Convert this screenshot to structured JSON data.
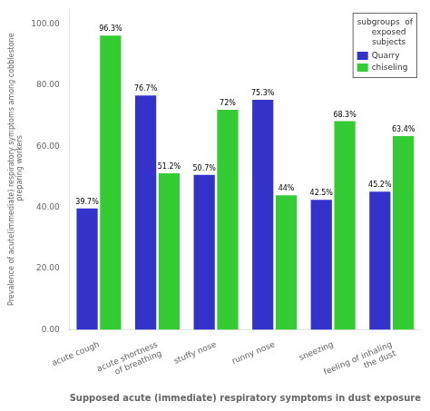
{
  "chart_data": {
    "type": "bar",
    "categories": [
      "acute cough",
      "acute shortness\nof breathing",
      "stuffy nose",
      "runny nose",
      "sneezing",
      "feeling of inhaling\nthe dust"
    ],
    "series": [
      {
        "name": "Quarry",
        "color": "#3333cc",
        "values": [
          39.7,
          76.7,
          50.7,
          75.3,
          42.5,
          45.2
        ],
        "value_labels": [
          "39.7%",
          "76.7%",
          "50.7%",
          "75.3%",
          "42.5%",
          "45.2%"
        ]
      },
      {
        "name": "chiseling",
        "color": "#33cc33",
        "values": [
          96.3,
          51.2,
          72.0,
          44.0,
          68.3,
          63.4
        ],
        "value_labels": [
          "96.3%",
          "51.2%",
          "72%",
          "44%",
          "68.3%",
          "63.4%"
        ]
      }
    ],
    "xlabel": "Supposed acute (immediate) respiratory symptoms in dust exposure",
    "ylabel": "Prevalence of acute(immediate) respiratory symptoms among cobblestone\n preparing workers",
    "ylim": [
      0,
      105
    ],
    "yticks": [
      {
        "value": 0,
        "label": "0.00"
      },
      {
        "value": 20,
        "label": "20.00"
      },
      {
        "value": 40,
        "label": "40.00"
      },
      {
        "value": 60,
        "label": "60.00"
      },
      {
        "value": 80,
        "label": "80.00"
      },
      {
        "value": 100,
        "label": "100.00"
      }
    ],
    "grid": false,
    "legend": "upper right",
    "legend_title": "subgroups  of\n   exposed\n   subjects",
    "data_labels": true
  }
}
